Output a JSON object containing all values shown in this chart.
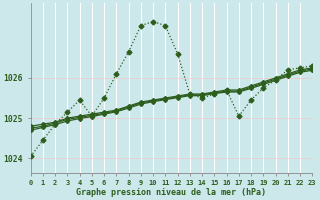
{
  "background_color": "#cce8ea",
  "grid_color": "#b0d8dc",
  "line_color": "#2d5e1e",
  "title": "Graphe pression niveau de la mer (hPa)",
  "xlim": [
    0,
    23
  ],
  "ylim": [
    1023.65,
    1027.85
  ],
  "yticks": [
    1024,
    1025,
    1026
  ],
  "xticks": [
    0,
    1,
    2,
    3,
    4,
    5,
    6,
    7,
    8,
    9,
    10,
    11,
    12,
    13,
    14,
    15,
    16,
    17,
    18,
    19,
    20,
    21,
    22,
    23
  ],
  "series": [
    {
      "y": [
        1024.05,
        1024.45,
        1024.85,
        1025.15,
        1025.45,
        1025.05,
        1025.5,
        1026.1,
        1026.65,
        1027.3,
        1027.4,
        1027.3,
        1026.6,
        1025.6,
        1025.5,
        1025.6,
        1025.7,
        1025.05,
        1025.45,
        1025.75,
        1025.95,
        1026.2,
        1026.25,
        1026.3
      ],
      "linestyle": ":",
      "linewidth": 0.9,
      "marker": "D",
      "markersize": 2.5
    },
    {
      "y": [
        1024.8,
        1024.85,
        1024.9,
        1025.0,
        1025.05,
        1025.1,
        1025.15,
        1025.2,
        1025.3,
        1025.4,
        1025.45,
        1025.5,
        1025.55,
        1025.6,
        1025.6,
        1025.65,
        1025.7,
        1025.7,
        1025.8,
        1025.9,
        1026.0,
        1026.1,
        1026.2,
        1026.25
      ],
      "linestyle": "-",
      "linewidth": 0.9,
      "marker": "D",
      "markersize": 2.0
    },
    {
      "y": [
        1024.75,
        1024.8,
        1024.88,
        1024.97,
        1025.02,
        1025.07,
        1025.12,
        1025.18,
        1025.28,
        1025.38,
        1025.43,
        1025.48,
        1025.53,
        1025.58,
        1025.58,
        1025.63,
        1025.67,
        1025.67,
        1025.77,
        1025.87,
        1025.97,
        1026.07,
        1026.17,
        1026.22
      ],
      "linestyle": "-",
      "linewidth": 0.9,
      "marker": "D",
      "markersize": 2.0
    },
    {
      "y": [
        1024.7,
        1024.77,
        1024.84,
        1024.93,
        1024.99,
        1025.04,
        1025.1,
        1025.16,
        1025.25,
        1025.35,
        1025.41,
        1025.46,
        1025.51,
        1025.56,
        1025.56,
        1025.61,
        1025.65,
        1025.65,
        1025.74,
        1025.84,
        1025.94,
        1026.04,
        1026.14,
        1026.19
      ],
      "linestyle": "-",
      "linewidth": 0.9,
      "marker": "D",
      "markersize": 2.0
    }
  ]
}
